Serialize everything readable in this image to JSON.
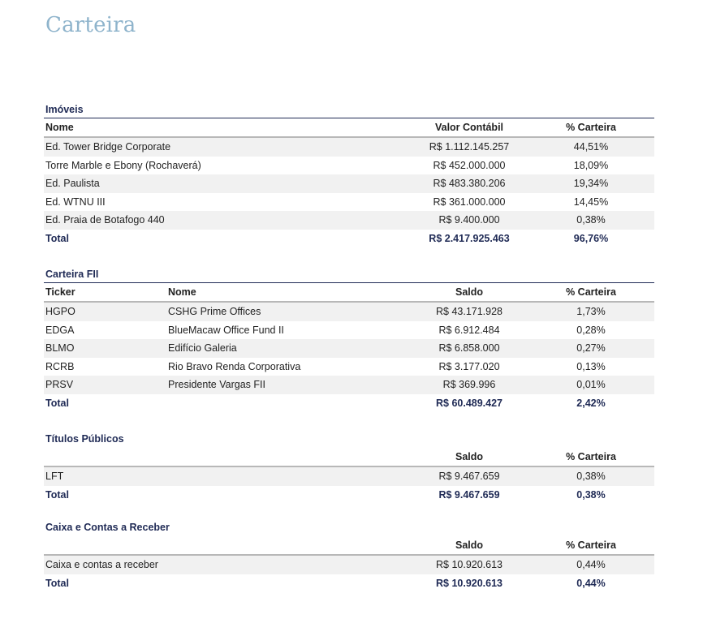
{
  "page": {
    "title": "Carteira"
  },
  "imoveis": {
    "title": "Imóveis",
    "headers": {
      "nome": "Nome",
      "valor": "Valor Contábil",
      "pct": "% Carteira"
    },
    "rows": [
      {
        "nome": "Ed. Tower Bridge Corporate",
        "valor": "R$ 1.112.145.257",
        "pct": "44,51%"
      },
      {
        "nome": "Torre Marble e Ebony (Rochaverá)",
        "valor": "R$ 452.000.000",
        "pct": "18,09%"
      },
      {
        "nome": "Ed. Paulista",
        "valor": "R$ 483.380.206",
        "pct": "19,34%"
      },
      {
        "nome": "Ed. WTNU III",
        "valor": "R$ 361.000.000",
        "pct": "14,45%"
      },
      {
        "nome": "Ed. Praia de Botafogo 440",
        "valor": "R$ 9.400.000",
        "pct": "0,38%"
      }
    ],
    "total": {
      "label": "Total",
      "valor": "R$ 2.417.925.463",
      "pct": "96,76%"
    }
  },
  "fii": {
    "title": "Carteira FII",
    "headers": {
      "ticker": "Ticker",
      "nome": "Nome",
      "saldo": "Saldo",
      "pct": "% Carteira"
    },
    "rows": [
      {
        "ticker": "HGPO",
        "nome": "CSHG Prime Offices",
        "saldo": "R$ 43.171.928",
        "pct": "1,73%"
      },
      {
        "ticker": "EDGA",
        "nome": "BlueMacaw Office Fund II",
        "saldo": "R$ 6.912.484",
        "pct": "0,28%"
      },
      {
        "ticker": "BLMO",
        "nome": "Edifício Galeria",
        "saldo": "R$ 6.858.000",
        "pct": "0,27%"
      },
      {
        "ticker": "RCRB",
        "nome": "Rio Bravo Renda Corporativa",
        "saldo": "R$ 3.177.020",
        "pct": "0,13%"
      },
      {
        "ticker": "PRSV",
        "nome": "Presidente Vargas FII",
        "saldo": "R$ 369.996",
        "pct": "0,01%"
      }
    ],
    "total": {
      "label": "Total",
      "saldo": "R$ 60.489.427",
      "pct": "2,42%"
    }
  },
  "titulos": {
    "title": "Títulos Públicos",
    "headers": {
      "saldo": "Saldo",
      "pct": "% Carteira"
    },
    "rows": [
      {
        "nome": "LFT",
        "saldo": "R$ 9.467.659",
        "pct": "0,38%"
      }
    ],
    "total": {
      "label": "Total",
      "saldo": "R$ 9.467.659",
      "pct": "0,38%"
    }
  },
  "caixa": {
    "title": "Caixa e Contas a Receber",
    "headers": {
      "saldo": "Saldo",
      "pct": "% Carteira"
    },
    "rows": [
      {
        "nome": "Caixa e contas a receber",
        "saldo": "R$ 10.920.613",
        "pct": "0,44%"
      }
    ],
    "total": {
      "label": "Total",
      "saldo": "R$ 10.920.613",
      "pct": "0,44%"
    }
  }
}
